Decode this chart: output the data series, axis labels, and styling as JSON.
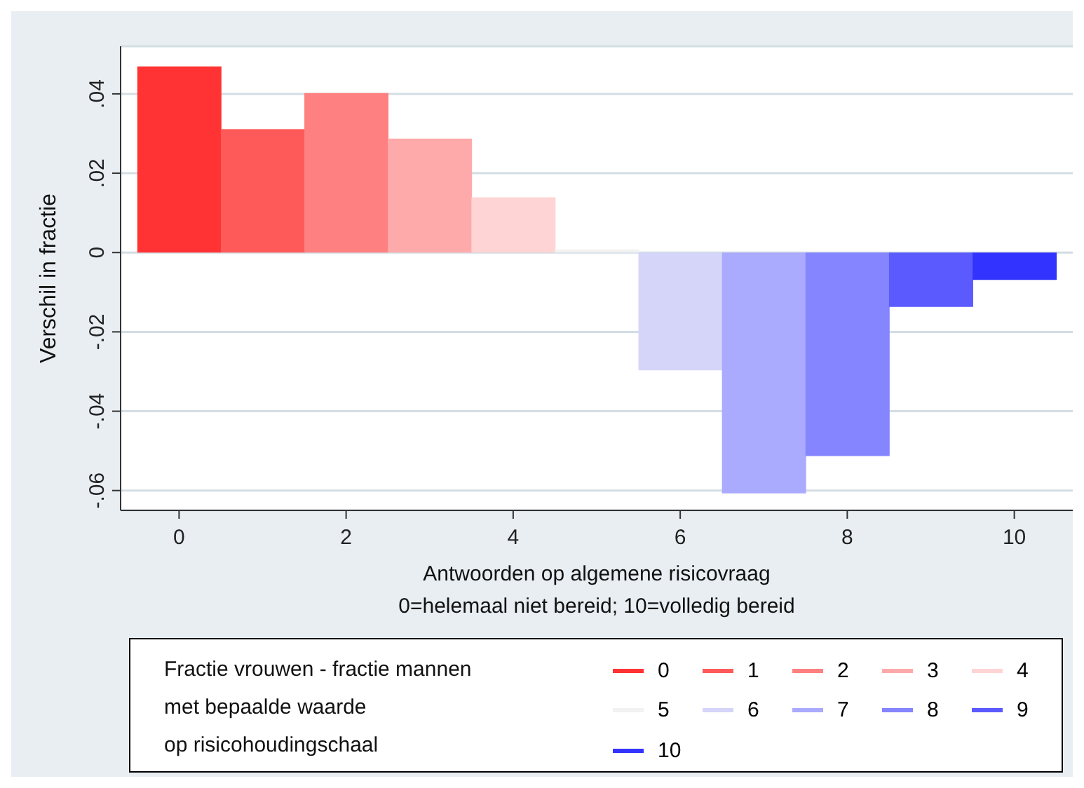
{
  "chart_data": {
    "type": "bar",
    "xlabel": "Antwoorden op algemene risicovraag",
    "annotations": [
      "0=helemaal niet bereid; 10=volledig bereid"
    ],
    "legend_title": "Fractie vrouwen - fractie mannen\nmet bepaalde waarde\nop risicohoudingschaal",
    "x": [
      0,
      1,
      2,
      3,
      4,
      5,
      6,
      7,
      8,
      9,
      10
    ],
    "xlim": [
      -0.7,
      10.7
    ],
    "xticks": [
      0,
      2,
      4,
      6,
      8,
      10
    ],
    "ylabel": "Verschil in fractie",
    "ylim": [
      -0.065,
      0.052
    ],
    "yticks": [
      {
        "value": -0.06,
        "label": "-.06"
      },
      {
        "value": -0.04,
        "label": "-.04"
      },
      {
        "value": -0.02,
        "label": "-.02"
      },
      0,
      {
        "value": 0.02,
        "label": ".02"
      },
      {
        "value": 0.04,
        "label": ".04"
      }
    ],
    "grid": "y",
    "legend": "bottom",
    "series": [
      {
        "name": "0",
        "color": "#ff3333",
        "values": [
          0.0469,
          null,
          null,
          null,
          null,
          null,
          null,
          null,
          null,
          null,
          null
        ]
      },
      {
        "name": "1",
        "color": "#ff5a5a",
        "values": [
          null,
          0.0311,
          null,
          null,
          null,
          null,
          null,
          null,
          null,
          null,
          null
        ]
      },
      {
        "name": "2",
        "color": "#ff8080",
        "values": [
          null,
          null,
          0.0402,
          null,
          null,
          null,
          null,
          null,
          null,
          null,
          null
        ]
      },
      {
        "name": "3",
        "color": "#ffaaaa",
        "values": [
          null,
          null,
          null,
          0.0287,
          null,
          null,
          null,
          null,
          null,
          null,
          null
        ]
      },
      {
        "name": "4",
        "color": "#ffd4d4",
        "values": [
          null,
          null,
          null,
          null,
          0.0139,
          null,
          null,
          null,
          null,
          null,
          null
        ]
      },
      {
        "name": "5",
        "color": "#f2f2f2",
        "values": [
          null,
          null,
          null,
          null,
          null,
          0.0008,
          null,
          null,
          null,
          null,
          null
        ]
      },
      {
        "name": "6",
        "color": "#d5d5fa",
        "values": [
          null,
          null,
          null,
          null,
          null,
          null,
          -0.0297,
          null,
          null,
          null,
          null
        ]
      },
      {
        "name": "7",
        "color": "#aaaafe",
        "values": [
          null,
          null,
          null,
          null,
          null,
          null,
          null,
          -0.0607,
          null,
          null,
          null
        ]
      },
      {
        "name": "8",
        "color": "#8585ff",
        "values": [
          null,
          null,
          null,
          null,
          null,
          null,
          null,
          null,
          -0.0513,
          null,
          null
        ]
      },
      {
        "name": "9",
        "color": "#5a5aff",
        "values": [
          null,
          null,
          null,
          null,
          null,
          null,
          null,
          null,
          null,
          -0.0137,
          null
        ]
      },
      {
        "name": "10",
        "color": "#3333ff",
        "values": [
          null,
          null,
          null,
          null,
          null,
          null,
          null,
          null,
          null,
          null,
          -0.0069
        ]
      }
    ]
  }
}
